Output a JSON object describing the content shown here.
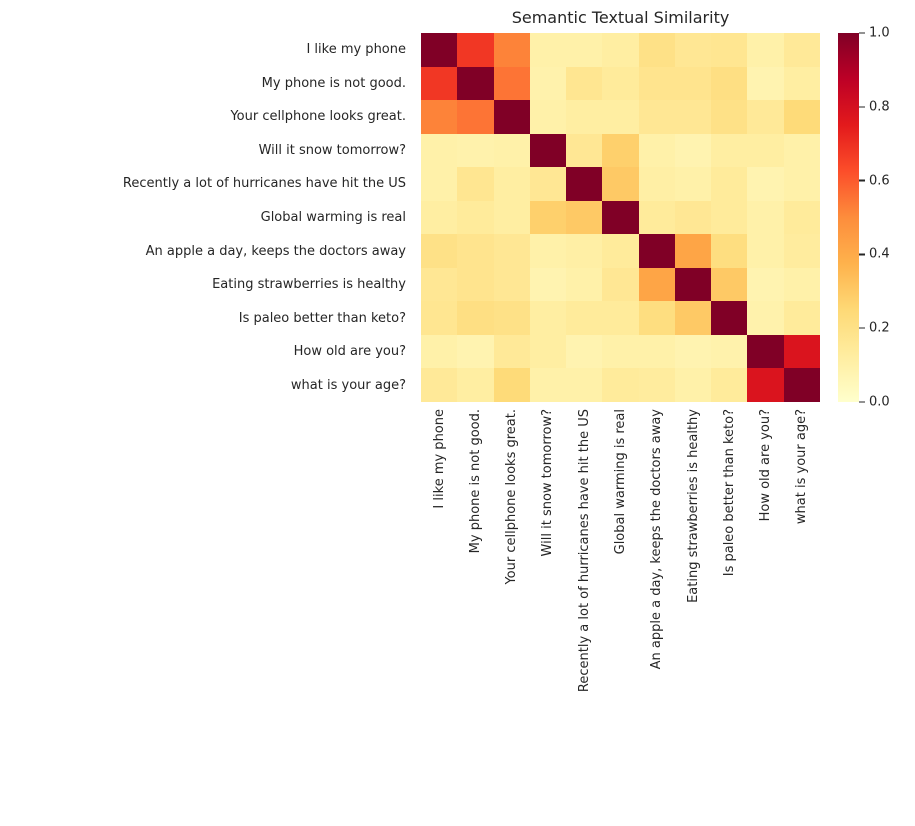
{
  "title": "Semantic Textual Similarity",
  "chart_data": {
    "type": "heatmap",
    "title": "Semantic Textual Similarity",
    "labels": [
      "I like my phone",
      "My phone is not good.",
      "Your cellphone looks great.",
      "Will it snow tomorrow?",
      "Recently a lot of hurricanes have hit the US",
      "Global warming is real",
      "An apple a day, keeps the doctors away",
      "Eating strawberries is healthy",
      "Is paleo better than keto?",
      "How old are you?",
      "what is your age?"
    ],
    "matrix": [
      [
        1.0,
        0.68,
        0.52,
        0.1,
        0.1,
        0.12,
        0.2,
        0.16,
        0.17,
        0.1,
        0.15
      ],
      [
        0.68,
        1.0,
        0.55,
        0.09,
        0.17,
        0.14,
        0.18,
        0.18,
        0.21,
        0.08,
        0.12
      ],
      [
        0.52,
        0.55,
        1.0,
        0.1,
        0.12,
        0.12,
        0.16,
        0.16,
        0.2,
        0.15,
        0.24
      ],
      [
        0.1,
        0.09,
        0.1,
        1.0,
        0.16,
        0.28,
        0.1,
        0.08,
        0.12,
        0.12,
        0.1
      ],
      [
        0.1,
        0.17,
        0.12,
        0.16,
        1.0,
        0.3,
        0.11,
        0.1,
        0.14,
        0.08,
        0.1
      ],
      [
        0.12,
        0.14,
        0.12,
        0.28,
        0.3,
        1.0,
        0.14,
        0.16,
        0.14,
        0.1,
        0.14
      ],
      [
        0.2,
        0.18,
        0.16,
        0.1,
        0.11,
        0.14,
        1.0,
        0.42,
        0.22,
        0.1,
        0.13
      ],
      [
        0.16,
        0.18,
        0.16,
        0.08,
        0.1,
        0.16,
        0.42,
        1.0,
        0.3,
        0.08,
        0.1
      ],
      [
        0.17,
        0.21,
        0.2,
        0.12,
        0.14,
        0.14,
        0.22,
        0.3,
        1.0,
        0.09,
        0.14
      ],
      [
        0.1,
        0.08,
        0.15,
        0.12,
        0.08,
        0.1,
        0.1,
        0.08,
        0.09,
        1.0,
        0.78
      ],
      [
        0.15,
        0.12,
        0.24,
        0.1,
        0.1,
        0.14,
        0.13,
        0.1,
        0.14,
        0.78,
        1.0
      ]
    ],
    "vmin": 0.0,
    "vmax": 1.0,
    "colormap": "YlOrRd",
    "colormap_stops": [
      "#ffffcc",
      "#ffeda0",
      "#fed976",
      "#feb24c",
      "#fd8d3c",
      "#fc4e2a",
      "#e31a1c",
      "#bd0026",
      "#800026"
    ],
    "colorbar_ticks": [
      "0.0",
      "0.2",
      "0.4",
      "0.6",
      "0.8",
      "1.0"
    ],
    "legend_position": "right",
    "grid": false
  },
  "text_color": "#262626"
}
